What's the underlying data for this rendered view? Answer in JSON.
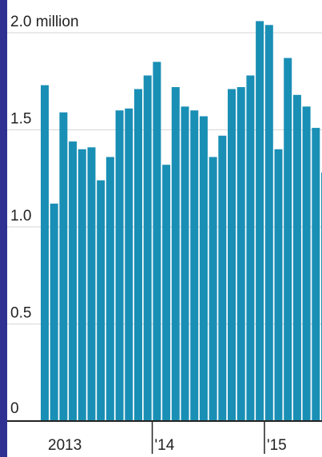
{
  "colors": {
    "frame": "#2e3192",
    "bar": "#1a8fb5",
    "grid": "#d6d6d6",
    "text": "#222222"
  },
  "chart_data": {
    "type": "bar",
    "title": "",
    "xlabel": "",
    "ylabel": "",
    "ylim": [
      0,
      2.0
    ],
    "grid": true,
    "y_ticks": [
      {
        "value": 2.0,
        "label": "2.0 million"
      },
      {
        "value": 1.5,
        "label": "1.5"
      },
      {
        "value": 1.0,
        "label": "1.0"
      },
      {
        "value": 0.5,
        "label": "0.5"
      },
      {
        "value": 0,
        "label": "0"
      }
    ],
    "x_labels": [
      {
        "label": "2013",
        "at_index": 0
      },
      {
        "label": "'14",
        "at_index": 12
      },
      {
        "label": "'15",
        "at_index": 24
      }
    ],
    "values": [
      1.73,
      1.12,
      1.59,
      1.44,
      1.4,
      1.41,
      1.24,
      1.36,
      1.6,
      1.61,
      1.71,
      1.78,
      1.85,
      1.32,
      1.72,
      1.62,
      1.6,
      1.57,
      1.36,
      1.47,
      1.71,
      1.72,
      1.78,
      2.06,
      2.04,
      1.4,
      1.87,
      1.68,
      1.62,
      1.51,
      1.28
    ]
  }
}
